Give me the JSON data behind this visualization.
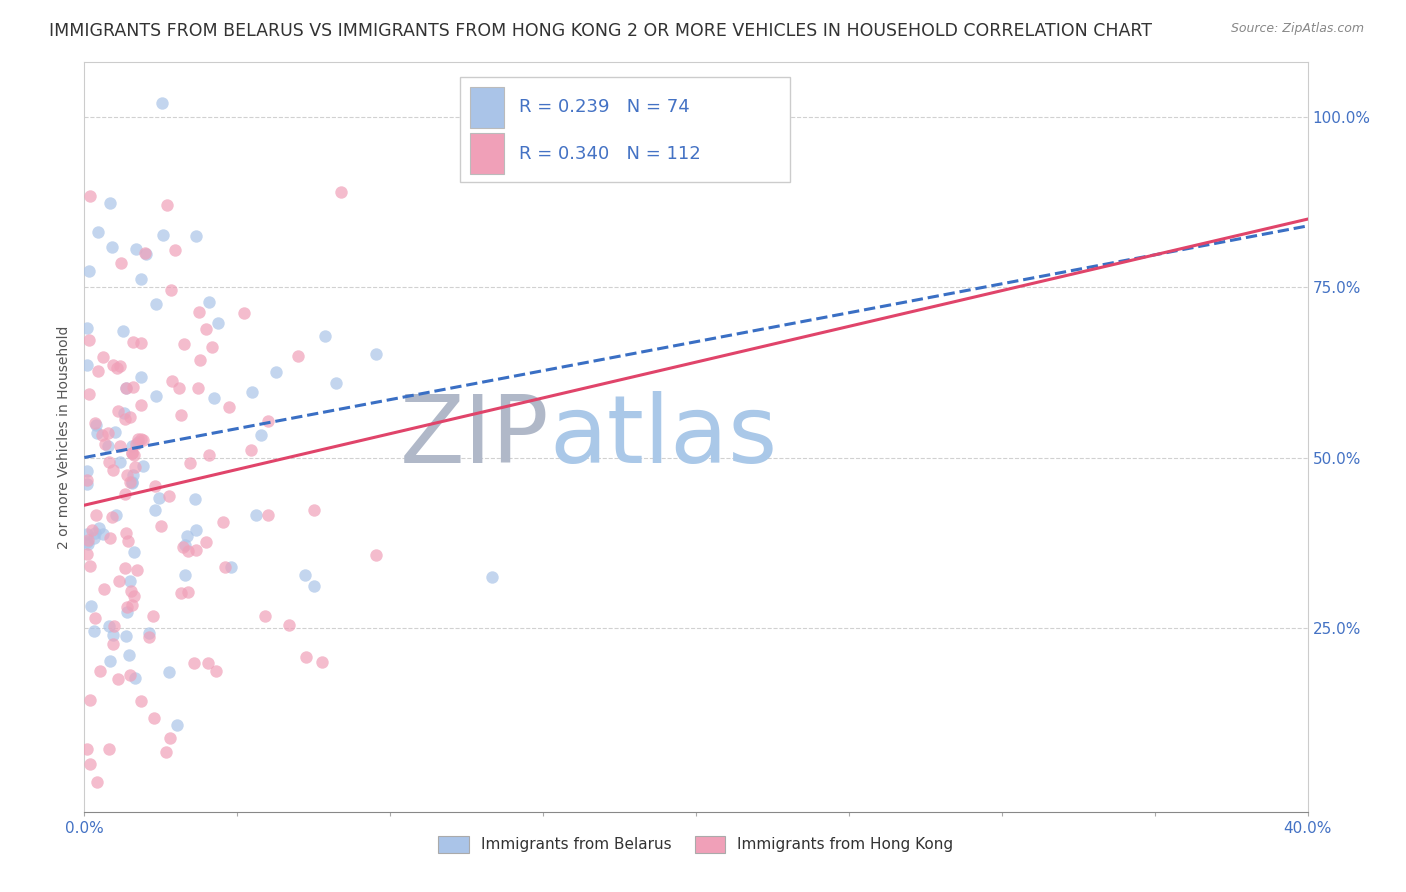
{
  "title": "IMMIGRANTS FROM BELARUS VS IMMIGRANTS FROM HONG KONG 2 OR MORE VEHICLES IN HOUSEHOLD CORRELATION CHART",
  "source": "Source: ZipAtlas.com",
  "ylabel": "2 or more Vehicles in Household",
  "ytick_labels": [
    "25.0%",
    "50.0%",
    "75.0%",
    "100.0%"
  ],
  "ytick_values": [
    0.25,
    0.5,
    0.75,
    1.0
  ],
  "xlim": [
    0.0,
    0.4
  ],
  "ylim": [
    -0.02,
    1.08
  ],
  "series": [
    {
      "label": "Immigrants from Belarus",
      "R": 0.239,
      "N": 74,
      "color_scatter": "#aac4e8",
      "color_line": "#3a6fc4",
      "line_style": "--",
      "seed": 12,
      "slope": 0.85,
      "intercept": 0.5
    },
    {
      "label": "Immigrants from Hong Kong",
      "R": 0.34,
      "N": 112,
      "color_scatter": "#f0a0b8",
      "color_line": "#e0446a",
      "line_style": "-",
      "seed": 7,
      "slope": 1.05,
      "intercept": 0.43
    }
  ],
  "watermark_zip_color": "#b0b8c8",
  "watermark_atlas_color": "#aac8e8",
  "background_color": "#ffffff",
  "grid_color": "#cccccc",
  "title_fontsize": 12.5,
  "axis_label_fontsize": 10,
  "tick_fontsize": 11,
  "legend_fontsize": 13
}
